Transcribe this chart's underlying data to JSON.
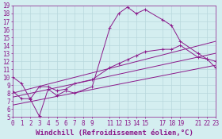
{
  "xlabel": "Windchill (Refroidissement éolien,°C)",
  "background_color": "#d4eef0",
  "grid_color": "#b8d8dc",
  "line_color": "#8b1a8b",
  "xlim": [
    0,
    23
  ],
  "ylim": [
    5,
    19
  ],
  "yticks": [
    5,
    6,
    7,
    8,
    9,
    10,
    11,
    12,
    13,
    14,
    15,
    16,
    17,
    18,
    19
  ],
  "xticks": [
    0,
    1,
    2,
    3,
    4,
    5,
    6,
    7,
    8,
    9,
    11,
    12,
    13,
    14,
    15,
    17,
    18,
    19,
    21,
    22,
    23
  ],
  "line1_x": [
    0,
    1,
    2,
    3,
    4,
    5,
    6,
    7,
    9,
    11,
    12,
    13,
    14,
    15,
    17,
    18,
    19,
    21,
    22,
    23
  ],
  "line1_y": [
    10,
    9.2,
    7.2,
    5.1,
    8.5,
    7.7,
    8.3,
    8.0,
    8.8,
    16.2,
    18.0,
    18.8,
    18.0,
    18.5,
    17.2,
    16.5,
    14.5,
    13.0,
    12.3,
    12.0
  ],
  "line2_x": [
    0,
    1,
    2,
    3,
    4,
    5,
    6,
    7,
    9,
    11,
    12,
    13,
    14,
    15,
    17,
    18,
    19,
    21,
    22,
    23
  ],
  "line2_y": [
    8.2,
    7.3,
    7.3,
    8.8,
    8.8,
    8.3,
    8.5,
    9.2,
    9.7,
    11.2,
    11.7,
    12.2,
    12.7,
    13.2,
    13.5,
    13.5,
    14.0,
    12.5,
    12.3,
    11.2
  ],
  "line3_x": [
    0,
    23
  ],
  "line3_y": [
    7.5,
    13.0
  ],
  "line4_x": [
    0,
    23
  ],
  "line4_y": [
    6.5,
    11.5
  ],
  "line5_x": [
    0,
    23
  ],
  "line5_y": [
    8.0,
    14.5
  ],
  "xlabel_fontsize": 6.5,
  "tick_fontsize": 5.5,
  "figsize": [
    2.8,
    1.75
  ],
  "dpi": 100
}
